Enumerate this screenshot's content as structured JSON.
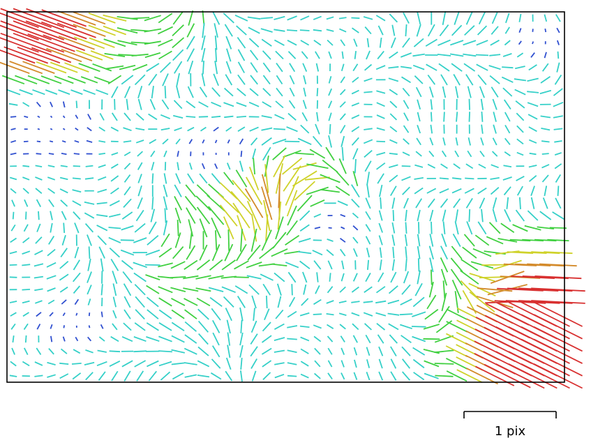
{
  "chart_data": {
    "type": "vector_field",
    "title": "",
    "xlabel": "",
    "ylabel": "",
    "scale_bar": {
      "label": "1 pix",
      "value": 1,
      "unit": "pix"
    },
    "grid": false,
    "legend": "none",
    "color_scale": [
      "#3050d0",
      "#35d0c8",
      "#40d040",
      "#cfd22a",
      "#d38a2a",
      "#d83030"
    ],
    "field_description_values": {
      "grid_columns": 44,
      "grid_rows": 30,
      "max_magnitude_pix": 1.4,
      "high_regions": [
        {
          "name": "top-left",
          "u": 0.02,
          "v": 0.04,
          "magnitude": 1.4
        },
        {
          "name": "bottom-right",
          "u": 0.98,
          "v": 0.97,
          "magnitude": 1.4
        },
        {
          "name": "right-edge",
          "u": 0.99,
          "v": 0.78,
          "magnitude": 1.0
        },
        {
          "name": "center",
          "u": 0.49,
          "v": 0.5,
          "magnitude": 0.75
        }
      ],
      "zero_centers": [
        {
          "u": 0.08,
          "v": 0.3
        },
        {
          "u": 0.38,
          "v": 0.38
        },
        {
          "u": 0.58,
          "v": 0.57
        },
        {
          "u": 0.95,
          "v": 0.07
        },
        {
          "u": 0.13,
          "v": 0.84
        }
      ]
    }
  }
}
